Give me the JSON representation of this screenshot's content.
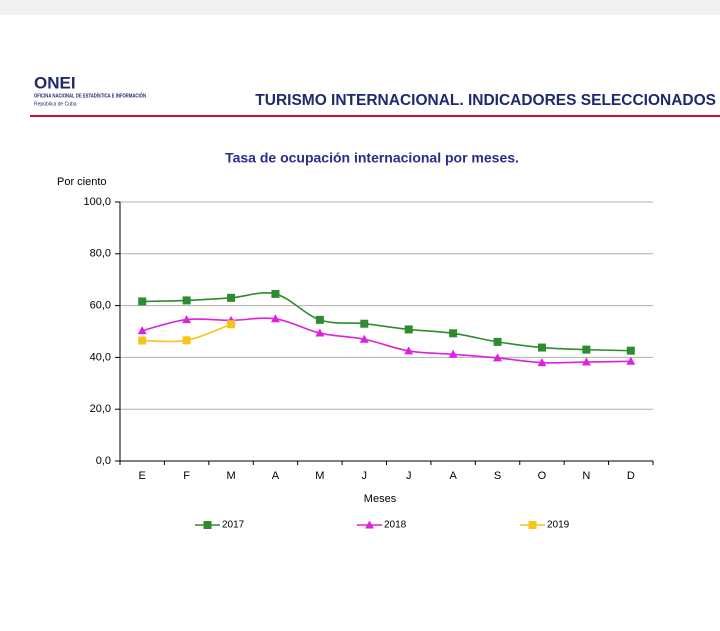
{
  "header": {
    "logo": "ONEI",
    "org": "OFICINA NACIONAL DE ESTADÍSTICA E INFORMACIÓN",
    "country": "República de Cuba",
    "title": "TURISMO INTERNACIONAL. INDICADORES SELECCIONADOS"
  },
  "chart_data": {
    "type": "line",
    "title": "Tasa de ocupación internacional por meses.",
    "y_label": "Por ciento",
    "x_label": "Meses",
    "categories": [
      "E",
      "F",
      "M",
      "A",
      "M",
      "J",
      "J",
      "A",
      "S",
      "O",
      "N",
      "D"
    ],
    "series": [
      {
        "name": "2017",
        "color": "#2e8b2e",
        "marker": "square",
        "values": [
          61.6,
          62.0,
          63.0,
          64.5,
          54.5,
          53.0,
          50.8,
          49.3,
          46.0,
          43.8,
          43.0,
          42.6
        ]
      },
      {
        "name": "2018",
        "color": "#e020e0",
        "marker": "triangle",
        "values": [
          50.3,
          54.6,
          54.3,
          54.9,
          49.4,
          47.0,
          42.5,
          41.2,
          39.8,
          38.0,
          38.2,
          38.5
        ]
      },
      {
        "name": "2019",
        "color": "#f5c518",
        "marker": "square",
        "values": [
          46.5,
          46.6,
          52.8,
          null,
          null,
          null,
          null,
          null,
          null,
          null,
          null,
          null
        ]
      }
    ],
    "ylim": [
      0,
      100
    ],
    "yticks": [
      {
        "value": 0,
        "label": "0,0"
      },
      {
        "value": 20,
        "label": "20,0"
      },
      {
        "value": 40,
        "label": "40,0"
      },
      {
        "value": 60,
        "label": "60,0"
      },
      {
        "value": 80,
        "label": "80,0"
      },
      {
        "value": 100,
        "label": "100,0"
      }
    ],
    "grid": true,
    "legend": "bottom"
  }
}
